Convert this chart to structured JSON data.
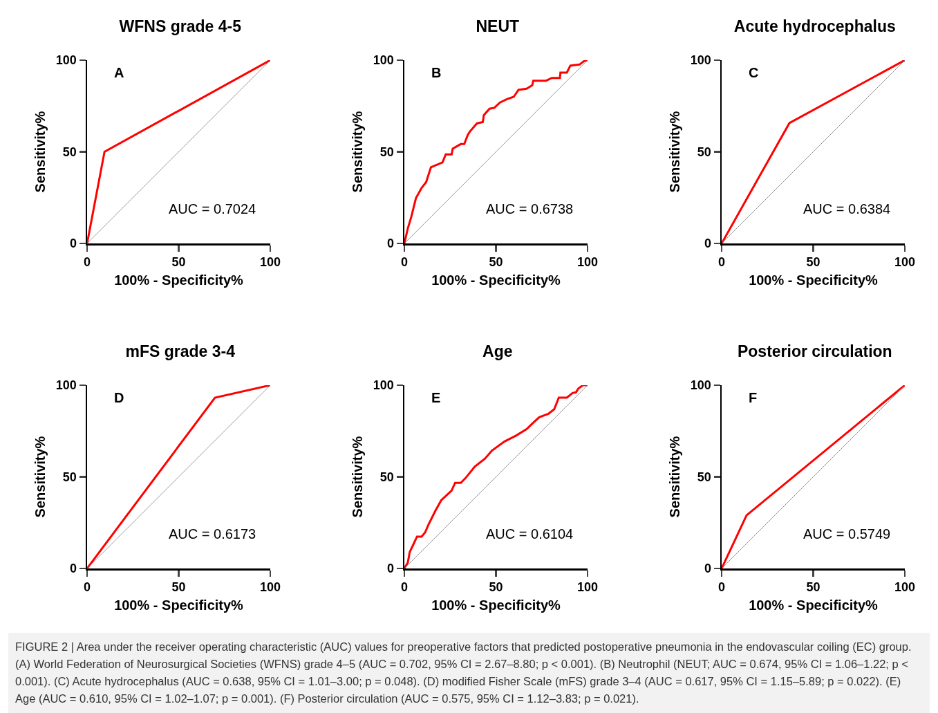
{
  "chart_data": [
    {
      "type": "line",
      "title": "WFNS grade 4-5",
      "xlabel": "100% - Specificity%",
      "ylabel": "Sensitivity%",
      "xlim": [
        0,
        100
      ],
      "ylim": [
        0,
        100
      ],
      "xticks": [
        0,
        50,
        100
      ],
      "yticks": [
        0,
        50,
        100
      ],
      "marker": "none",
      "line_style": "solid",
      "annotations": [
        "A",
        "AUC = 0.7024"
      ],
      "series": [
        {
          "x": [
            0,
            9.5,
            100
          ],
          "values": [
            0,
            50,
            100
          ],
          "color": "#ff0000"
        },
        {
          "x": [
            0,
            100
          ],
          "values": [
            0,
            100
          ],
          "color": "#808080"
        }
      ]
    },
    {
      "type": "line",
      "title": "NEUT",
      "xlabel": "100% - Specificity%",
      "ylabel": "Sensitivity%",
      "xlim": [
        0,
        100
      ],
      "ylim": [
        0,
        100
      ],
      "xticks": [
        0,
        50,
        100
      ],
      "yticks": [
        0,
        50,
        100
      ],
      "marker": "none",
      "line_style": "solid",
      "annotations": [
        "B",
        "AUC = 0.6738"
      ],
      "series": [
        {
          "x": [
            0,
            1.9,
            3.8,
            6.3,
            9.4,
            11.9,
            14.5,
            20.8,
            22.6,
            25.8,
            26.4,
            30.8,
            32.7,
            34.6,
            35.8,
            39.6,
            42.8,
            43.4,
            46.5,
            49.1,
            52.2,
            56,
            59.7,
            62.3,
            66.7,
            69.8,
            70.4,
            77.4,
            80.5,
            84.9,
            85.2,
            88.7,
            90.6,
            95.6,
            98.1,
            100
          ],
          "values": [
            0,
            8.3,
            14.6,
            24.7,
            30.3,
            33.5,
            41.6,
            44.2,
            48.6,
            48.6,
            51.7,
            54.2,
            54.2,
            59.2,
            61.1,
            65.5,
            66.2,
            70,
            73.5,
            74,
            76.9,
            78.7,
            80,
            83.8,
            84.4,
            86.3,
            88.8,
            88.8,
            90.3,
            90.3,
            93.2,
            93.2,
            97,
            97.6,
            99.5,
            100
          ],
          "color": "#ff0000"
        },
        {
          "x": [
            0,
            100
          ],
          "values": [
            0,
            100
          ],
          "color": "#808080"
        }
      ]
    },
    {
      "type": "line",
      "title": "Acute hydrocephalus",
      "xlabel": "100% - Specificity%",
      "ylabel": "Sensitivity%",
      "xlim": [
        0,
        100
      ],
      "ylim": [
        0,
        100
      ],
      "xticks": [
        0,
        50,
        100
      ],
      "yticks": [
        0,
        50,
        100
      ],
      "marker": "none",
      "line_style": "solid",
      "annotations": [
        "C",
        "AUC = 0.6384"
      ],
      "series": [
        {
          "x": [
            0,
            37,
            100
          ],
          "values": [
            0,
            65.7,
            100
          ],
          "color": "#ff0000"
        },
        {
          "x": [
            0,
            100
          ],
          "values": [
            0,
            100
          ],
          "color": "#808080"
        }
      ]
    },
    {
      "type": "line",
      "title": "mFS grade 3-4",
      "xlabel": "100% - Specificity%",
      "ylabel": "Sensitivity%",
      "xlim": [
        0,
        100
      ],
      "ylim": [
        0,
        100
      ],
      "xticks": [
        0,
        50,
        100
      ],
      "yticks": [
        0,
        50,
        100
      ],
      "marker": "none",
      "line_style": "solid",
      "annotations": [
        "D",
        "AUC = 0.6173"
      ],
      "series": [
        {
          "x": [
            0,
            69.8,
            100
          ],
          "values": [
            0,
            93.2,
            100
          ],
          "color": "#ff0000"
        },
        {
          "x": [
            0,
            100
          ],
          "values": [
            0,
            100
          ],
          "color": "#808080"
        }
      ]
    },
    {
      "type": "line",
      "title": "Age",
      "xlabel": "100% - Specificity%",
      "ylabel": "Sensitivity%",
      "xlim": [
        0,
        100
      ],
      "ylim": [
        0,
        100
      ],
      "xticks": [
        0,
        50,
        100
      ],
      "yticks": [
        0,
        50,
        100
      ],
      "marker": "none",
      "line_style": "solid",
      "annotations": [
        "E",
        "AUC = 0.6104"
      ],
      "series": [
        {
          "x": [
            0,
            1.9,
            2.9,
            5,
            6.9,
            9.4,
            11.3,
            13.2,
            17,
            20.1,
            25.8,
            27.7,
            30.8,
            33.3,
            38.4,
            44,
            47.8,
            54.7,
            61,
            66.7,
            69.8,
            73.6,
            78.6,
            81.8,
            84.3,
            88.7,
            91.8,
            93.7,
            95,
            97.5,
            100
          ],
          "values": [
            0,
            3.3,
            8.9,
            13.3,
            17.4,
            17.4,
            19.6,
            24,
            31.6,
            37.2,
            42.5,
            46.7,
            46.7,
            49.2,
            55.5,
            59.9,
            64.3,
            69.3,
            72.5,
            76,
            79,
            82.5,
            84.4,
            86.9,
            93.2,
            93.2,
            95.7,
            96.1,
            98.2,
            100,
            100
          ],
          "color": "#ff0000"
        },
        {
          "x": [
            0,
            100
          ],
          "values": [
            0,
            100
          ],
          "color": "#808080"
        }
      ]
    },
    {
      "type": "line",
      "title": "Posterior circulation",
      "xlabel": "100% - Specificity%",
      "ylabel": "Sensitivity%",
      "xlim": [
        0,
        100
      ],
      "ylim": [
        0,
        100
      ],
      "xticks": [
        0,
        50,
        100
      ],
      "yticks": [
        0,
        50,
        100
      ],
      "marker": "none",
      "line_style": "solid",
      "annotations": [
        "F",
        "AUC = 0.5749",
        "FIGURE 2 | Area under the receiver operating characteristic (AUC) values for preoperative factors that predicted postoperative pneumonia in the endovascular coiling (EC) group. (A) World Federation of Neurosurgical Societies (WFNS) grade 4–5 (AUC = 0.702, 95% CI = 2.67–8.80; p < 0.001). (B) Neutrophil (NEUT; AUC = 0.674, 95% CI = 1.06–1.22; p < 0.001). (C) Acute hydrocephalus (AUC = 0.638, 95% CI = 1.01–3.00; p = 0.048). (D) modified Fisher Scale (mFS) grade 3–4 (AUC = 0.617, 95% CI = 1.15–5.89; p = 0.022). (E) Age (AUC = 0.610, 95% CI = 1.02–1.07; p = 0.001). (F) Posterior circulation (AUC = 0.575, 95% CI = 1.12–3.83; p = 0.021)."
      ],
      "series": [
        {
          "x": [
            0,
            13.6,
            100
          ],
          "values": [
            0,
            29,
            100
          ],
          "color": "#ff0000"
        },
        {
          "x": [
            0,
            100
          ],
          "values": [
            0,
            100
          ],
          "color": "#808080"
        }
      ]
    }
  ]
}
